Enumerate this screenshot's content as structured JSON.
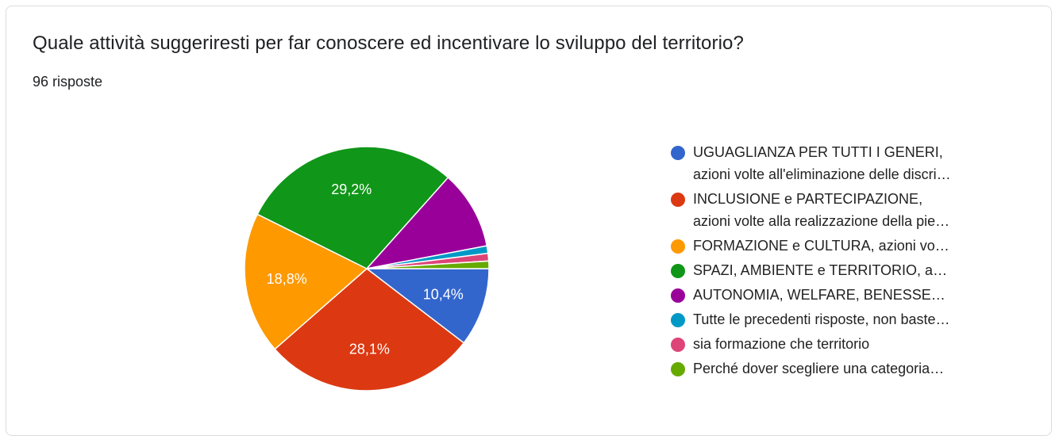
{
  "question": {
    "title": "Quale attività suggeriresti per far conoscere ed incentivare lo sviluppo del territorio?",
    "responses": "96 risposte"
  },
  "chart_data": {
    "type": "pie",
    "legend_position": "right",
    "slices": [
      {
        "label": "UGUAGLIANZA PER TUTTI I GENERI, azioni volte all'eliminazione delle discri…",
        "lines": [
          "UGUAGLIANZA PER TUTTI I GENERI,",
          "azioni volte all'eliminazione delle discri…"
        ],
        "value": 10.4,
        "display": "10,4%",
        "color": "#3366cc"
      },
      {
        "label": "INCLUSIONE e PARTECIPAZIONE, azioni volte alla realizzazione della pie…",
        "lines": [
          "INCLUSIONE e PARTECIPAZIONE,",
          "azioni volte alla realizzazione della pie…"
        ],
        "value": 28.1,
        "display": "28,1%",
        "color": "#dc3912"
      },
      {
        "label": "FORMAZIONE e CULTURA, azioni vo…",
        "lines": [
          "FORMAZIONE e CULTURA, azioni vo…"
        ],
        "value": 18.8,
        "display": "18,8%",
        "color": "#ff9900"
      },
      {
        "label": "SPAZI, AMBIENTE e TERRITORIO, a…",
        "lines": [
          "SPAZI, AMBIENTE e TERRITORIO, a…"
        ],
        "value": 29.2,
        "display": "29,2%",
        "color": "#109618"
      },
      {
        "label": "AUTONOMIA, WELFARE, BENESSE…",
        "lines": [
          "AUTONOMIA, WELFARE, BENESSE…"
        ],
        "value": 10.4,
        "display": "",
        "color": "#990099"
      },
      {
        "label": "Tutte le precedenti risposte, non baste…",
        "lines": [
          "Tutte le precedenti risposte, non baste…"
        ],
        "value": 1.0,
        "display": "",
        "color": "#0099c6"
      },
      {
        "label": "sia formazione che territorio",
        "lines": [
          "sia formazione che territorio"
        ],
        "value": 1.0,
        "display": "",
        "color": "#dd4477"
      },
      {
        "label": "Perché dover scegliere una categoria…",
        "lines": [
          "Perché dover scegliere una categoria…"
        ],
        "value": 1.0,
        "display": "",
        "color": "#66aa00"
      }
    ]
  }
}
